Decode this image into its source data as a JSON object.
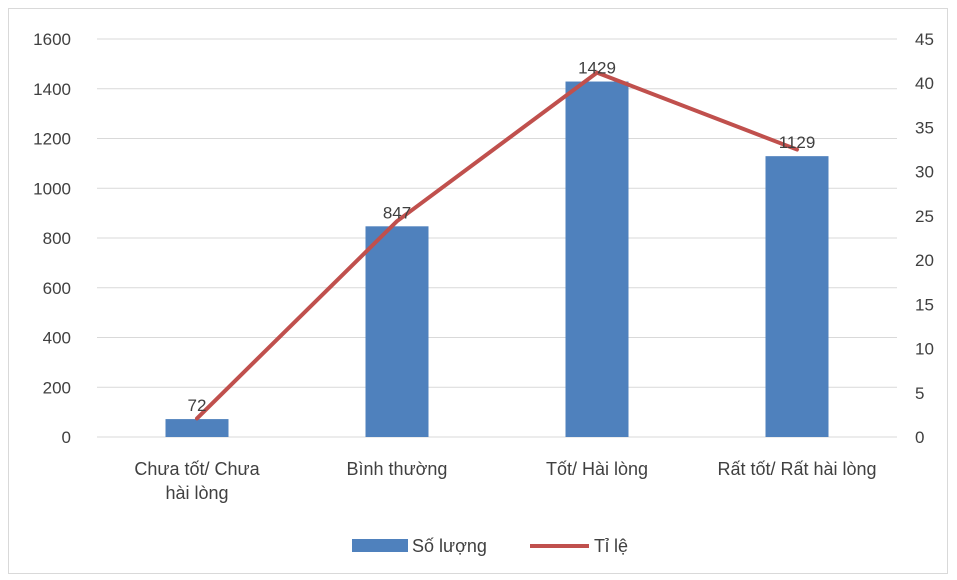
{
  "chart_data": {
    "type": "bar",
    "categories": [
      "Chưa tốt/ Chưa hài lòng",
      "Bình thường",
      "Tốt/ Hài lòng",
      "Rất tốt/ Rất hài lòng"
    ],
    "category_label_lines": [
      [
        "Chưa tốt/ Chưa",
        "hài lòng"
      ],
      [
        "Bình thường"
      ],
      [
        "Tốt/ Hài lòng"
      ],
      [
        "Rất tốt/ Rất hài lòng"
      ]
    ],
    "series": [
      {
        "name": "Số lượng",
        "type": "bar",
        "axis": "left",
        "values": [
          72,
          847,
          1429,
          1129
        ],
        "data_labels": [
          "72",
          "847",
          "1429",
          "1129"
        ]
      },
      {
        "name": "Tỉ lệ",
        "type": "line",
        "axis": "right",
        "values": [
          2.1,
          24.4,
          41.2,
          32.5
        ]
      }
    ],
    "y_left": {
      "min": 0,
      "max": 1600,
      "ticks": [
        "0",
        "200",
        "400",
        "600",
        "800",
        "1000",
        "1200",
        "1400",
        "1600"
      ]
    },
    "y_right": {
      "min": 0,
      "max": 45,
      "ticks": [
        "0",
        "5",
        "10",
        "15",
        "20",
        "25",
        "30",
        "35",
        "40",
        "45"
      ]
    },
    "grid": true,
    "legend_position": "bottom",
    "colors": {
      "bar": "#4f81bd",
      "line": "#c0504d",
      "grid": "#d9d9d9",
      "text": "#404040"
    }
  }
}
